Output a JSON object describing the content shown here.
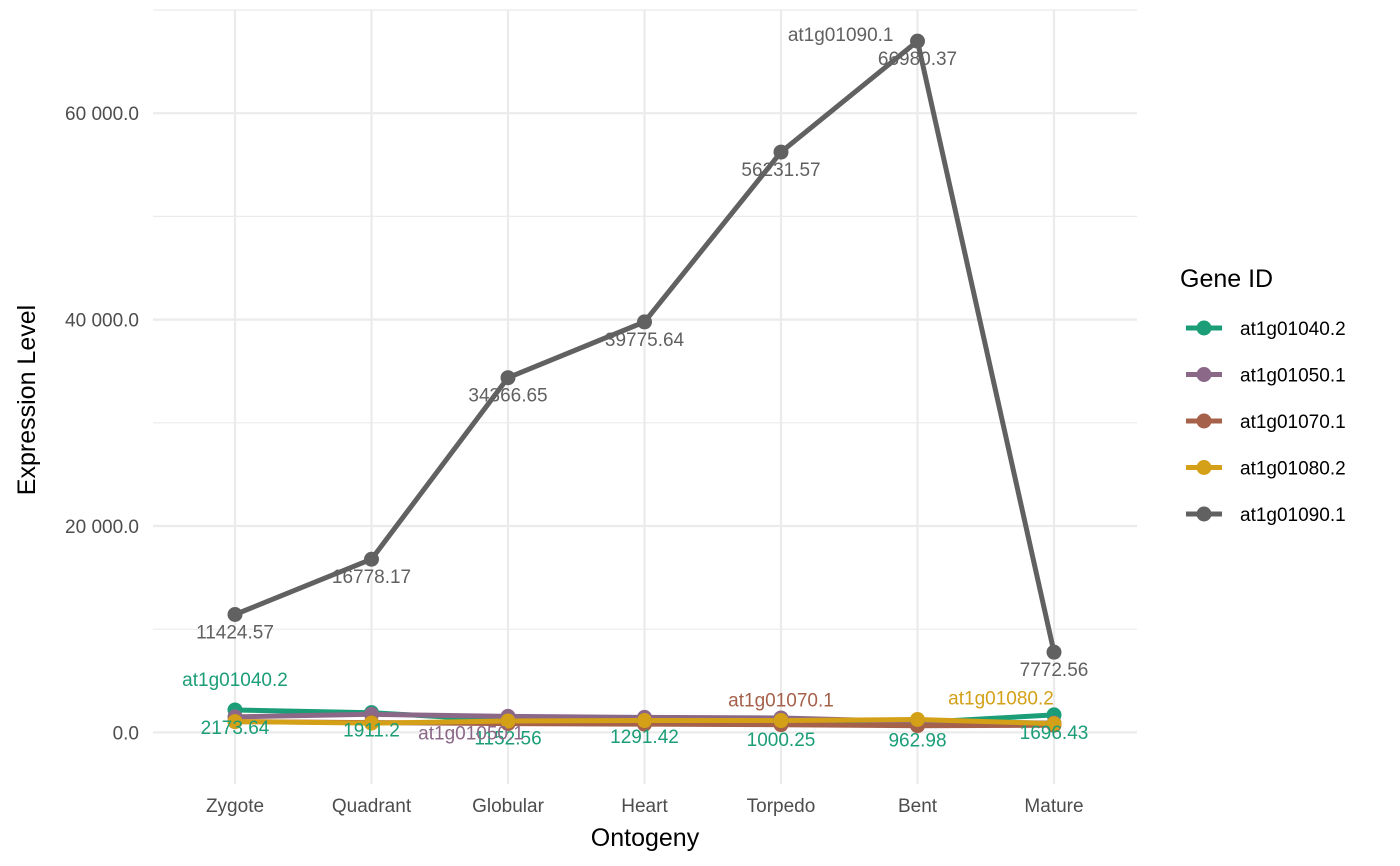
{
  "chart_data": {
    "type": "line",
    "title": "",
    "xlabel": "Ontogeny",
    "ylabel": "Expression Level",
    "legend_title": "Gene ID",
    "legend_position": "right",
    "grid": true,
    "ylim": [
      -5000,
      70000
    ],
    "y_ticks": [
      0,
      20000,
      40000,
      60000
    ],
    "y_tick_labels": [
      "0.0",
      "20 000.0",
      "40 000.0",
      "60 000.0"
    ],
    "categories": [
      "Zygote",
      "Quadrant",
      "Globular",
      "Heart",
      "Torpedo",
      "Bent",
      "Mature"
    ],
    "series": [
      {
        "name": "at1g01040.2",
        "color": "#1b9e77",
        "values": [
          2173.64,
          1911.2,
          1152.56,
          1291.42,
          1000.25,
          962.98,
          1696.43
        ]
      },
      {
        "name": "at1g01050.1",
        "color": "#8b6888",
        "values": [
          1500,
          1750,
          1550,
          1450,
          1400,
          1050,
          900
        ]
      },
      {
        "name": "at1g01070.1",
        "color": "#a6614a",
        "values": [
          1050,
          950,
          850,
          800,
          750,
          650,
          700
        ]
      },
      {
        "name": "at1g01080.2",
        "color": "#d4a017",
        "values": [
          1050,
          900,
          1100,
          1150,
          1150,
          1250,
          850
        ]
      },
      {
        "name": "at1g01090.1",
        "color": "#616161",
        "values": [
          11424.57,
          16778.17,
          34366.65,
          39775.64,
          56231.57,
          66980.37,
          7772.56
        ]
      }
    ],
    "value_labels": [
      {
        "series": 0,
        "index": 0,
        "text": "2173.64"
      },
      {
        "series": 0,
        "index": 1,
        "text": "1911.2"
      },
      {
        "series": 0,
        "index": 2,
        "text": "1152.56"
      },
      {
        "series": 0,
        "index": 3,
        "text": "1291.42"
      },
      {
        "series": 0,
        "index": 4,
        "text": "1000.25"
      },
      {
        "series": 0,
        "index": 5,
        "text": "962.98"
      },
      {
        "series": 0,
        "index": 6,
        "text": "1696.43"
      },
      {
        "series": 4,
        "index": 0,
        "text": "11424.57"
      },
      {
        "series": 4,
        "index": 1,
        "text": "16778.17"
      },
      {
        "series": 4,
        "index": 2,
        "text": "34366.65"
      },
      {
        "series": 4,
        "index": 3,
        "text": "39775.64"
      },
      {
        "series": 4,
        "index": 4,
        "text": "56231.57"
      },
      {
        "series": 4,
        "index": 5,
        "text": "66980.37"
      },
      {
        "series": 4,
        "index": 6,
        "text": "7772.56"
      }
    ],
    "series_annotations": [
      {
        "series": 0,
        "index": 0,
        "text": "at1g01040.2"
      },
      {
        "series": 1,
        "index": 2,
        "text": "at1g01050.1"
      },
      {
        "series": 2,
        "index": 4,
        "text": "at1g01070.1"
      },
      {
        "series": 3,
        "index": 6,
        "text": "at1g01080.2"
      },
      {
        "series": 4,
        "index": 5,
        "text": "at1g01090.1"
      }
    ]
  }
}
